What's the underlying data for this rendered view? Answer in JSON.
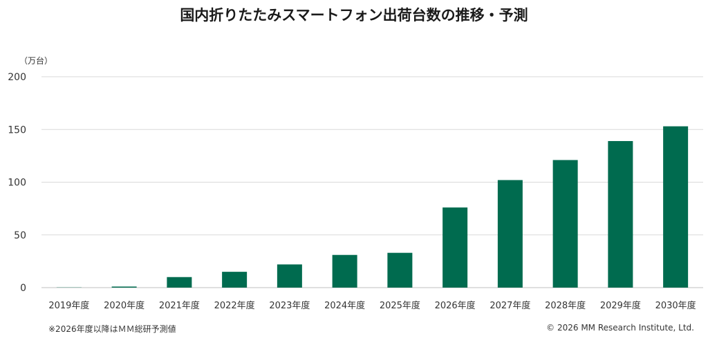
{
  "chart_data": {
    "type": "bar",
    "title": "国内折りたたみスマートフォン出荷台数の推移・予測",
    "unit_label": "（万台）",
    "categories": [
      "2019年度",
      "2020年度",
      "2021年度",
      "2022年度",
      "2023年度",
      "2024年度",
      "2025年度",
      "2026年度",
      "2027年度",
      "2028年度",
      "2029年度",
      "2030年度"
    ],
    "values": [
      0.2,
      1,
      10,
      15,
      22,
      31,
      33,
      76,
      102,
      121,
      139,
      153
    ],
    "ylim": [
      0,
      200
    ],
    "yticks": [
      0,
      50,
      100,
      150,
      200
    ],
    "grid": true,
    "bar_color": "#006b4f"
  },
  "footnote": "※2026年度以降はＭＭ総研予測値",
  "copyright": "© 2026 MM Research Institute, Ltd."
}
